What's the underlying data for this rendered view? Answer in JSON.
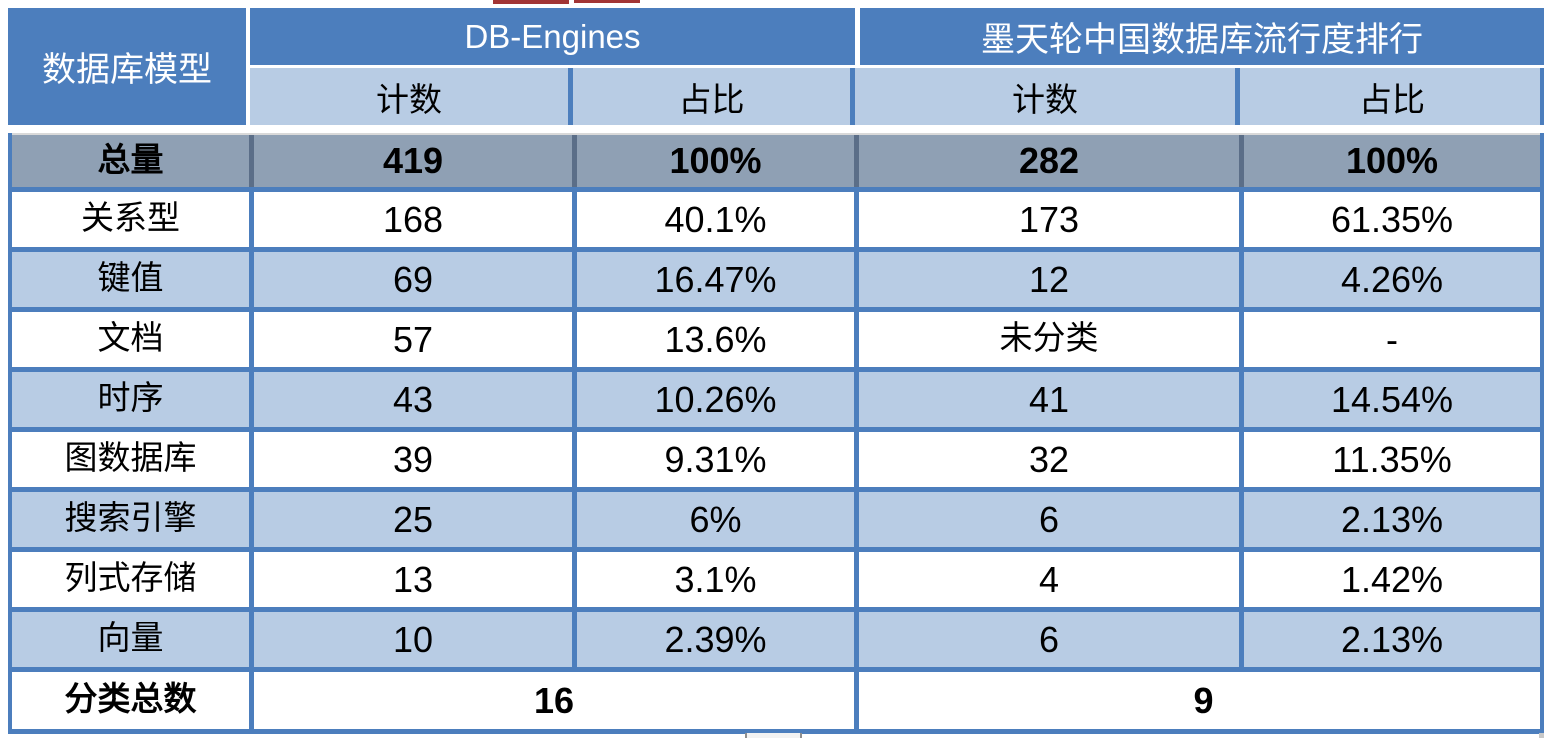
{
  "colors": {
    "header_blue": "#4C7EBD",
    "subheader_light_blue": "#B8CCE4",
    "total_row_gray": "#8FA0B4",
    "border_blue": "#4C7EBD",
    "total_divider_gray_blue": "#5B6E88",
    "thin_top_line": "#D9D9D9",
    "artifact_red": "#A23535"
  },
  "table": {
    "header": {
      "model_label": "数据库模型",
      "group1": "DB-Engines",
      "group2": "墨天轮中国数据库流行度排行",
      "sub": [
        "计数",
        "占比",
        "计数",
        "占比"
      ]
    },
    "total": {
      "label": "总量",
      "db_count": "419",
      "db_share": "100%",
      "cn_count": "282",
      "cn_share": "100%"
    },
    "rows": [
      {
        "label": "关系型",
        "db_count": "168",
        "db_share": "40.1%",
        "cn_count": "173",
        "cn_share": "61.35%"
      },
      {
        "label": "键值",
        "db_count": "69",
        "db_share": "16.47%",
        "cn_count": "12",
        "cn_share": "4.26%"
      },
      {
        "label": "文档",
        "db_count": "57",
        "db_share": "13.6%",
        "cn_count": "未分类",
        "cn_share": "-"
      },
      {
        "label": "时序",
        "db_count": "43",
        "db_share": "10.26%",
        "cn_count": "41",
        "cn_share": "14.54%"
      },
      {
        "label": "图数据库",
        "db_count": "39",
        "db_share": "9.31%",
        "cn_count": "32",
        "cn_share": "11.35%"
      },
      {
        "label": "搜索引擎",
        "db_count": "25",
        "db_share": "6%",
        "cn_count": "6",
        "cn_share": "2.13%"
      },
      {
        "label": "列式存储",
        "db_count": "13",
        "db_share": "3.1%",
        "cn_count": "4",
        "cn_share": "1.42%"
      },
      {
        "label": "向量",
        "db_count": "10",
        "db_share": "2.39%",
        "cn_count": "6",
        "cn_share": "2.13%"
      }
    ],
    "footer": {
      "label": "分类总数",
      "group1_total": "16",
      "group2_total": "9"
    }
  }
}
